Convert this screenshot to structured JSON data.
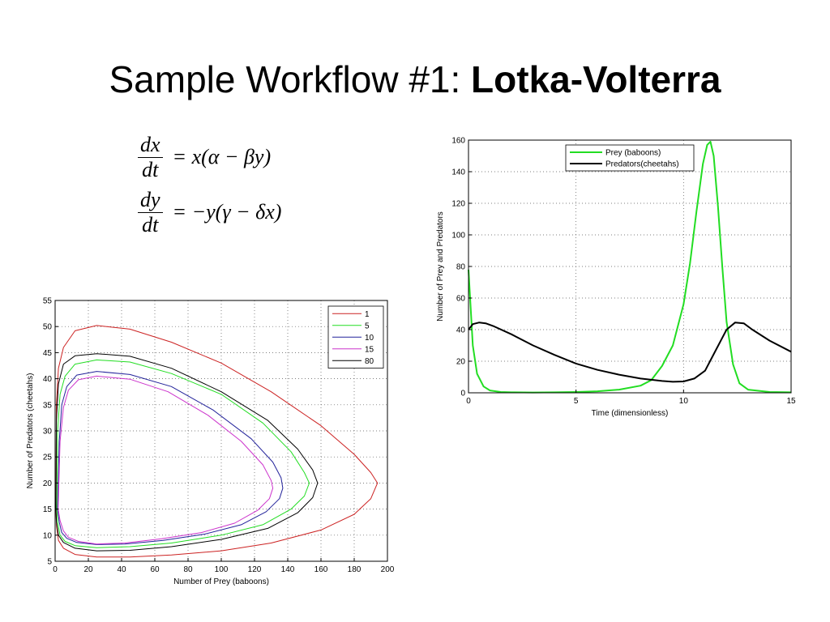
{
  "slide": {
    "title_prefix": "Sample Workflow #1: ",
    "title_bold": "Lotka-Volterra"
  },
  "equations": [
    {
      "num": "dx",
      "den": "dt",
      "rhs": "= x(α − βy)"
    },
    {
      "num": "dy",
      "den": "dt",
      "rhs": "= −y(γ − δx)"
    }
  ],
  "chart_data": [
    {
      "type": "line",
      "xlabel": "Time (dimensionless)",
      "ylabel": "Number of Prey and Predators",
      "xlim": [
        0,
        15
      ],
      "ylim": [
        0,
        160
      ],
      "xticks": [
        0,
        5,
        10,
        15
      ],
      "yticks": [
        0,
        20,
        40,
        60,
        80,
        100,
        120,
        140,
        160
      ],
      "grid": true,
      "legend": "top-right",
      "series": [
        {
          "name": "Prey (baboons)",
          "color": "#22dd22",
          "x": [
            0,
            0.2,
            0.4,
            0.7,
            1,
            1.5,
            2,
            3,
            4,
            5,
            6,
            7,
            8,
            8.5,
            9,
            9.5,
            10,
            10.3,
            10.6,
            10.9,
            11.1,
            11.25,
            11.4,
            11.6,
            11.8,
            12,
            12.3,
            12.6,
            13,
            14,
            15
          ],
          "y": [
            78,
            30,
            12,
            4,
            1.5,
            0.5,
            0.3,
            0.2,
            0.3,
            0.5,
            1,
            2,
            4.5,
            8,
            17,
            30,
            56,
            82,
            115,
            145,
            157,
            159,
            150,
            118,
            80,
            45,
            18,
            6,
            2,
            0.5,
            0.3
          ]
        },
        {
          "name": "Predators(cheetahs)",
          "color": "#000000",
          "x": [
            0,
            0.2,
            0.5,
            0.8,
            1.2,
            2,
            3,
            4,
            5,
            6,
            7,
            8,
            9,
            9.5,
            10,
            10.5,
            11,
            11.5,
            12,
            12.4,
            12.8,
            13.2,
            14,
            15
          ],
          "y": [
            40,
            43.5,
            44.5,
            44,
            42,
            37,
            30,
            24,
            18.5,
            14.5,
            11.5,
            9,
            7.5,
            7,
            7.2,
            9,
            14,
            27,
            40,
            44.5,
            44,
            40,
            33,
            26
          ]
        }
      ]
    },
    {
      "type": "line",
      "xlabel": "Number of Prey (baboons)",
      "ylabel": "Number of Predators (cheetahs)",
      "xlim": [
        0,
        200
      ],
      "ylim": [
        5,
        55
      ],
      "xticks": [
        0,
        20,
        40,
        60,
        80,
        100,
        120,
        140,
        160,
        180,
        200
      ],
      "yticks": [
        5,
        10,
        15,
        20,
        25,
        30,
        35,
        40,
        45,
        50,
        55
      ],
      "grid": true,
      "legend": "top-right",
      "series": [
        {
          "name": "1",
          "color": "#cc2222",
          "x": [
            0.5,
            0.8,
            2,
            5,
            12,
            25,
            45,
            70,
            100,
            130,
            160,
            180,
            190,
            194,
            190,
            180,
            160,
            130,
            100,
            70,
            45,
            25,
            12,
            5,
            2,
            0.8,
            0.5
          ],
          "y": [
            15,
            35,
            42,
            46,
            49.2,
            50.2,
            49.5,
            47,
            43,
            37.5,
            31,
            25.5,
            22,
            20,
            17,
            14,
            11,
            8.5,
            7,
            6.2,
            5.8,
            5.8,
            6.3,
            7.5,
            9,
            12,
            15
          ]
        },
        {
          "name": "5",
          "color": "#22dd22",
          "x": [
            1,
            1.5,
            3,
            6,
            12,
            25,
            45,
            70,
            100,
            125,
            142,
            150,
            153,
            150,
            142,
            125,
            100,
            70,
            45,
            25,
            12,
            6,
            3,
            1.5,
            1
          ],
          "y": [
            15,
            30,
            37,
            40.5,
            42.8,
            43.6,
            43.2,
            41,
            37,
            31.5,
            26,
            22,
            20,
            17.5,
            15,
            12,
            10,
            8.5,
            7.8,
            7.6,
            8,
            8.8,
            10,
            12.5,
            15
          ]
        },
        {
          "name": "10",
          "color": "#22229a",
          "x": [
            1.5,
            2.5,
            4,
            7,
            13,
            25,
            45,
            70,
            95,
            118,
            131,
            136,
            137,
            135,
            127,
            112,
            90,
            65,
            42,
            25,
            13,
            7,
            4,
            2.5,
            1.5
          ],
          "y": [
            15,
            28,
            35,
            38.5,
            40.7,
            41.4,
            40.8,
            38.5,
            34,
            28.5,
            24,
            21,
            19,
            17,
            14.5,
            12,
            10.2,
            9,
            8.3,
            8.2,
            8.6,
            9.4,
            10.5,
            12.5,
            15
          ]
        },
        {
          "name": "15",
          "color": "#cc33cc",
          "x": [
            1.8,
            3,
            5,
            8,
            14,
            25,
            45,
            68,
            92,
            112,
            125,
            130,
            131,
            129,
            122,
            108,
            88,
            64,
            42,
            25,
            14,
            8,
            5,
            3,
            1.8
          ],
          "y": [
            15,
            28,
            34.5,
            37.8,
            39.8,
            40.5,
            39.9,
            37.5,
            33,
            28,
            23.5,
            20.5,
            19,
            17,
            14.8,
            12.3,
            10.5,
            9.3,
            8.5,
            8.3,
            8.8,
            9.6,
            10.8,
            12.8,
            15
          ]
        },
        {
          "name": "80",
          "color": "#000000",
          "x": [
            0.5,
            0.8,
            2,
            5,
            12,
            25,
            45,
            70,
            100,
            128,
            146,
            155,
            158,
            155,
            146,
            128,
            100,
            70,
            45,
            25,
            12,
            5,
            2,
            0.8,
            0.5
          ],
          "y": [
            15,
            32,
            39,
            42.8,
            44.4,
            44.8,
            44.3,
            42,
            37.5,
            32,
            26.5,
            22.5,
            20,
            17.2,
            14.3,
            11.3,
            9.2,
            7.8,
            7.1,
            7,
            7.5,
            8.6,
            10,
            12.5,
            15
          ]
        }
      ]
    }
  ]
}
